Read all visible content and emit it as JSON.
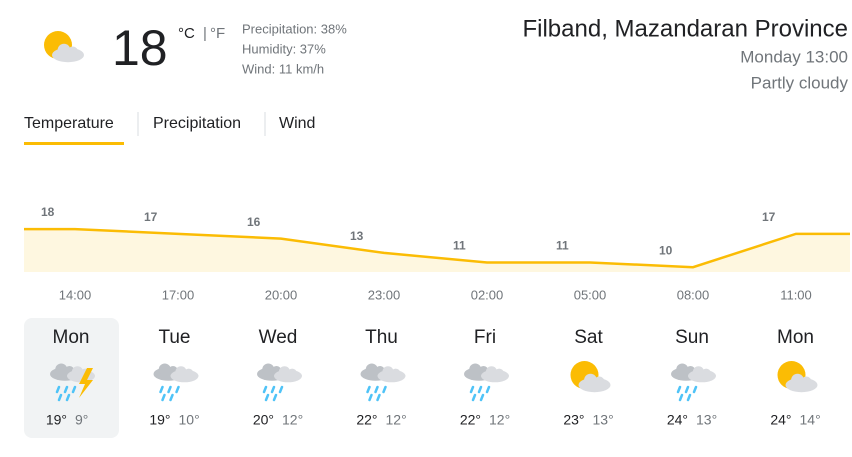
{
  "header": {
    "temperature": 18,
    "unit_c": "°C",
    "separator": "|",
    "unit_f": "°F",
    "precipitation": "Precipitation: 38%",
    "humidity": "Humidity: 37%",
    "wind": "Wind: 11 km/h",
    "location": "Filband, Mazandaran Province",
    "time": "Monday 13:00",
    "condition": "Partly cloudy"
  },
  "tabs": [
    "Temperature",
    "Precipitation",
    "Wind"
  ],
  "chart_data": {
    "type": "area",
    "x": [
      "14:00",
      "17:00",
      "20:00",
      "23:00",
      "02:00",
      "05:00",
      "08:00",
      "11:00"
    ],
    "values": [
      18,
      17,
      16,
      13,
      11,
      11,
      10,
      17
    ],
    "color": "#fbbc04",
    "ylim": [
      9,
      22
    ]
  },
  "forecast": [
    {
      "day": "Mon",
      "high": "19°",
      "low": "9°",
      "icon": "thunder"
    },
    {
      "day": "Tue",
      "high": "19°",
      "low": "10°",
      "icon": "rain"
    },
    {
      "day": "Wed",
      "high": "20°",
      "low": "12°",
      "icon": "rain"
    },
    {
      "day": "Thu",
      "high": "22°",
      "low": "12°",
      "icon": "rain"
    },
    {
      "day": "Fri",
      "high": "22°",
      "low": "12°",
      "icon": "rain"
    },
    {
      "day": "Sat",
      "high": "23°",
      "low": "13°",
      "icon": "partly-cloudy"
    },
    {
      "day": "Sun",
      "high": "24°",
      "low": "13°",
      "icon": "rain"
    },
    {
      "day": "Mon",
      "high": "24°",
      "low": "14°",
      "icon": "partly-cloudy"
    }
  ]
}
